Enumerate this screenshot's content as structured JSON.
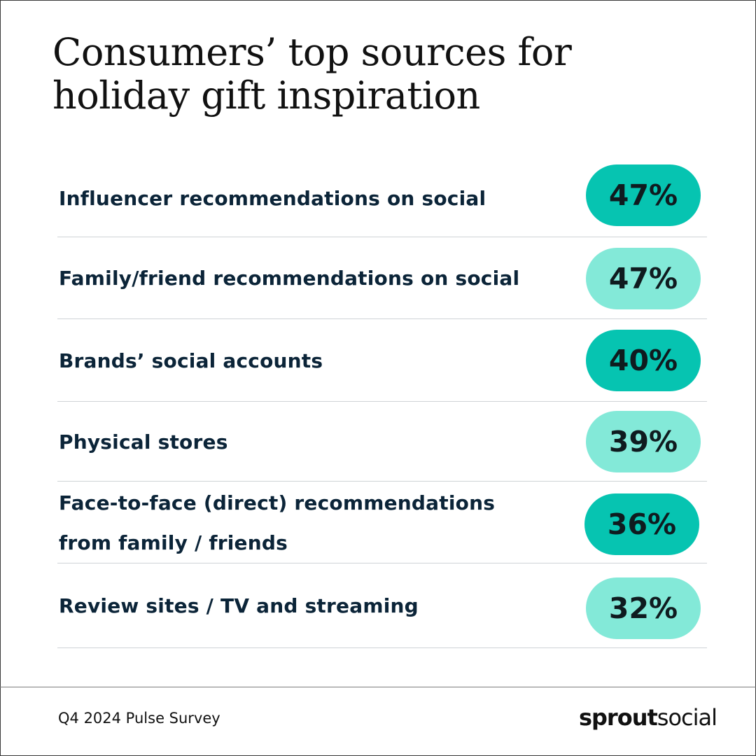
{
  "title_lines": [
    "Consumers’ top sources for",
    "holiday gift inspiration"
  ],
  "colors": {
    "dark_teal": "#06c4b1",
    "light_teal": "#83e9d8",
    "text": "#0b2438"
  },
  "chart_data": {
    "type": "table",
    "title": "Consumers’ top sources for holiday gift inspiration",
    "rows": [
      {
        "label_lines": [
          "Influencer recommendations on social"
        ],
        "value": 47,
        "display": "47%",
        "shade": "dark"
      },
      {
        "label_lines": [
          "Family/friend recommendations on social"
        ],
        "value": 47,
        "display": "47%",
        "shade": "light"
      },
      {
        "label_lines": [
          "Brands’ social accounts"
        ],
        "value": 40,
        "display": "40%",
        "shade": "dark"
      },
      {
        "label_lines": [
          "Physical stores"
        ],
        "value": 39,
        "display": "39%",
        "shade": "light"
      },
      {
        "label_lines": [
          "Face-to-face (direct) recommendations",
          "from family / friends"
        ],
        "value": 36,
        "display": "36%",
        "shade": "dark"
      },
      {
        "label_lines": [
          "Review sites / TV and streaming"
        ],
        "value": 32,
        "display": "32%",
        "shade": "light"
      }
    ]
  },
  "footer": {
    "survey": "Q4 2024 Pulse Survey",
    "brand_bold": "sprout",
    "brand_regular": "social"
  }
}
